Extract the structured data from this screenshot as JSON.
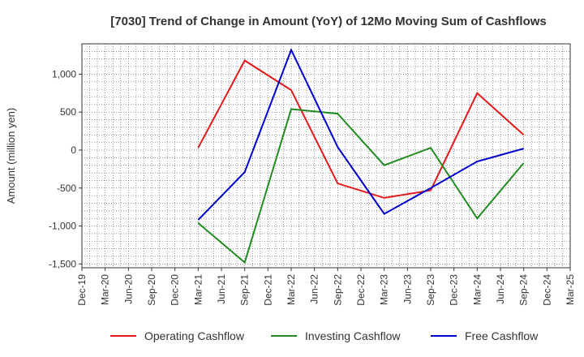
{
  "chart_data": {
    "type": "line",
    "title": "[7030]  Trend of Change in Amount (YoY) of 12Mo Moving Sum of Cashflows",
    "xlabel": "",
    "ylabel": "Amount (million yen)",
    "ylim": [
      -1550,
      1400
    ],
    "yticks": [
      {
        "value": 1000,
        "label": "1,000"
      },
      {
        "value": 500,
        "label": "500"
      },
      {
        "value": 0,
        "label": "0"
      },
      {
        "value": -500,
        "label": "-500"
      },
      {
        "value": -1000,
        "label": "-1,000"
      },
      {
        "value": -1500,
        "label": "-1,500"
      }
    ],
    "categories": [
      "Dec-19",
      "Mar-20",
      "Jun-20",
      "Sep-20",
      "Dec-20",
      "Mar-21",
      "Jun-21",
      "Sep-21",
      "Dec-21",
      "Mar-22",
      "Jun-22",
      "Sep-22",
      "Dec-22",
      "Mar-23",
      "Jun-23",
      "Sep-23",
      "Dec-23",
      "Mar-24",
      "Jun-24",
      "Sep-24",
      "Dec-24",
      "Mar-25"
    ],
    "series": [
      {
        "name": "Operating Cashflow",
        "color": "#e31a1c",
        "values": [
          null,
          null,
          null,
          null,
          null,
          30,
          null,
          1180,
          null,
          790,
          null,
          -440,
          null,
          -630,
          null,
          -530,
          null,
          750,
          null,
          200,
          null,
          null
        ]
      },
      {
        "name": "Investing Cashflow",
        "color": "#228b22",
        "values": [
          null,
          null,
          null,
          null,
          null,
          -960,
          null,
          -1480,
          null,
          540,
          null,
          480,
          null,
          -200,
          null,
          30,
          null,
          -900,
          null,
          -170,
          null,
          null
        ]
      },
      {
        "name": "Free Cashflow",
        "color": "#0000cd",
        "values": [
          null,
          null,
          null,
          null,
          null,
          -920,
          null,
          -290,
          null,
          1320,
          null,
          40,
          null,
          -840,
          null,
          -500,
          null,
          -150,
          null,
          20,
          null,
          null
        ]
      }
    ],
    "legend_position": "bottom",
    "grid": true
  }
}
